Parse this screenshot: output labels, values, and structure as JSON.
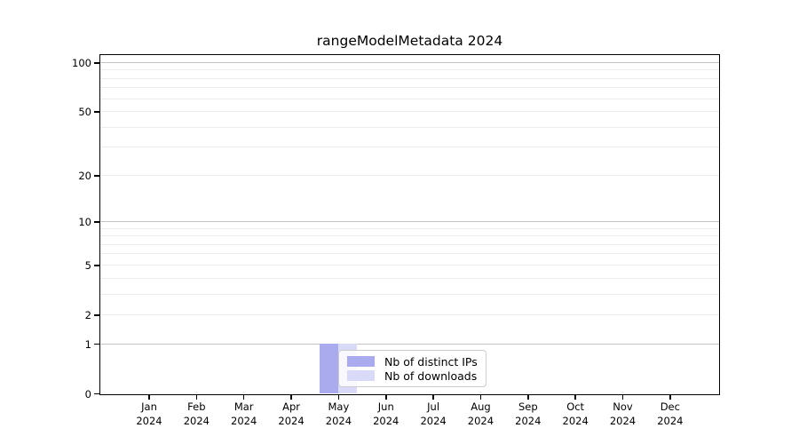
{
  "chart_data": {
    "type": "bar",
    "title": "rangeModelMetadata 2024",
    "categories": [
      "Jan",
      "Feb",
      "Mar",
      "Apr",
      "May",
      "Jun",
      "Jul",
      "Aug",
      "Sep",
      "Oct",
      "Nov",
      "Dec"
    ],
    "x_tick_year": "2024",
    "series": [
      {
        "name": "Nb of distinct IPs",
        "color": "#aaaaee",
        "values": [
          0,
          0,
          0,
          0,
          1,
          0,
          0,
          0,
          0,
          0,
          0,
          0
        ]
      },
      {
        "name": "Nb of downloads",
        "color": "#d9d9f8",
        "values": [
          0,
          0,
          0,
          0,
          1,
          0,
          0,
          0,
          0,
          0,
          0,
          0
        ]
      }
    ],
    "yscale": "log1p",
    "ylim": [
      0,
      100
    ],
    "y_ticks": [
      0,
      1,
      2,
      5,
      10,
      20,
      50,
      100
    ],
    "y_gridlines_major": [
      1,
      10,
      100
    ],
    "y_gridlines_minor": [
      2,
      3,
      4,
      5,
      6,
      7,
      8,
      9,
      20,
      30,
      40,
      50,
      60,
      70,
      80,
      90
    ],
    "grid": true,
    "legend_position": "inside lower center"
  },
  "colors": {
    "background": "#ffffff",
    "spine": "#000000",
    "grid_minor": "#ececec",
    "grid_major": "#c3c3c3",
    "legend_border": "#cccccc",
    "legend_background": "rgba(255,255,255,0.8)",
    "text": "#000000"
  }
}
